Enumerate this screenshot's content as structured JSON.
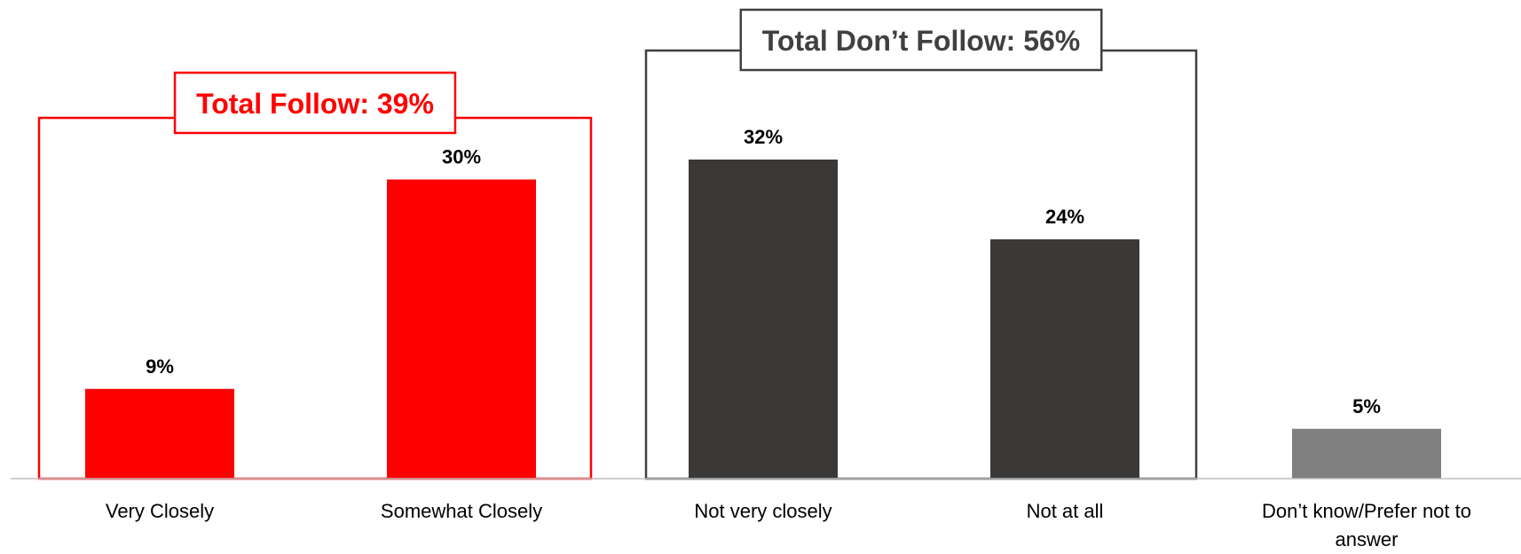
{
  "chart_data": {
    "type": "bar",
    "categories": [
      "Very Closely",
      "Somewhat Closely",
      "Not very closely",
      "Not at all",
      "Don’t know/Prefer not to answer"
    ],
    "category_lines": [
      [
        "Very Closely"
      ],
      [
        "Somewhat Closely"
      ],
      [
        "Not very closely"
      ],
      [
        "Not at all"
      ],
      [
        "Don’t know/Prefer not to",
        "answer"
      ]
    ],
    "values": [
      9,
      30,
      32,
      24,
      5
    ],
    "value_labels": [
      "9%",
      "30%",
      "32%",
      "24%",
      "5%"
    ],
    "bar_colors": [
      "#ff0000",
      "#ff0000",
      "#3a3938",
      "#3a3938",
      "#808080"
    ],
    "ylim": [
      0,
      35
    ],
    "title": "",
    "xlabel": "",
    "ylabel": "",
    "groups": [
      {
        "label": "Total Follow: 39%",
        "color": "#ff0000",
        "members": [
          0,
          1
        ]
      },
      {
        "label": "Total Don’t Follow: 56%",
        "color": "#404040",
        "members": [
          2,
          3
        ]
      }
    ]
  }
}
